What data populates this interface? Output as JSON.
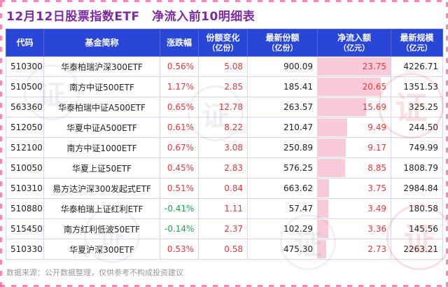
{
  "title": "12月12日股票指数ETF　净流入前10明细表",
  "footer": "数据来源：公开数据整理，仅供参考不构成投资建议",
  "watermark": {
    "glyph": "证"
  },
  "colors": {
    "title": "#7c2ba1",
    "header_bg": "#2a46d6",
    "header_text": "#ffffff",
    "up": "#e23a3c",
    "down": "#17a356",
    "bar": "#f9cbd8",
    "border": "#d9d3f0",
    "footer": "#999999"
  },
  "chart_data": {
    "type": "table",
    "title": "12月12日股票指数ETF　净流入前10明细表",
    "columns": [
      {
        "label": "代码",
        "sub": ""
      },
      {
        "label": "基金简称",
        "sub": ""
      },
      {
        "label": "涨跌幅",
        "sub": ""
      },
      {
        "label": "份额变化",
        "sub": "（亿份）"
      },
      {
        "label": "最新份额",
        "sub": "（亿份）"
      },
      {
        "label": "净流入额",
        "sub": "（亿元）"
      },
      {
        "label": "最新规模",
        "sub": "（亿元）"
      }
    ],
    "max_inflow": 23.75,
    "rows": [
      {
        "code": "510300",
        "name": "华泰柏瑞沪深300ETF",
        "change": "0.56%",
        "share_change": "5.08",
        "latest_share": "900.09",
        "inflow": "23.75",
        "scale": "4226.71"
      },
      {
        "code": "510500",
        "name": "南方中证500ETF",
        "change": "1.17%",
        "share_change": "2.85",
        "latest_share": "185.41",
        "inflow": "20.65",
        "scale": "1351.53"
      },
      {
        "code": "563360",
        "name": "华泰柏瑞中证A500ETF",
        "change": "0.65%",
        "share_change": "12.78",
        "latest_share": "263.57",
        "inflow": "15.69",
        "scale": "325.25"
      },
      {
        "code": "512050",
        "name": "华夏中证A500ETF",
        "change": "0.61%",
        "share_change": "8.22",
        "latest_share": "210.47",
        "inflow": "9.49",
        "scale": "244.50"
      },
      {
        "code": "512100",
        "name": "南方中证1000ETF",
        "change": "0.67%",
        "share_change": "3.08",
        "latest_share": "250.89",
        "inflow": "9.17",
        "scale": "749.99"
      },
      {
        "code": "510050",
        "name": "华夏上证50ETF",
        "change": "0.45%",
        "share_change": "2.83",
        "latest_share": "576.25",
        "inflow": "8.85",
        "scale": "1808.79"
      },
      {
        "code": "510310",
        "name": "易方达沪深300发起式ETF",
        "change": "0.51%",
        "share_change": "0.84",
        "latest_share": "663.62",
        "inflow": "3.75",
        "scale": "2984.84"
      },
      {
        "code": "510880",
        "name": "华泰柏瑞上证红利ETF",
        "change": "-0.41%",
        "share_change": "1.11",
        "latest_share": "57.47",
        "inflow": "3.49",
        "scale": "180.58"
      },
      {
        "code": "515450",
        "name": "南方红利低波50ETF",
        "change": "-0.14%",
        "share_change": "2.37",
        "latest_share": "102.29",
        "inflow": "3.36",
        "scale": "145.56"
      },
      {
        "code": "510330",
        "name": "华夏沪深300ETF",
        "change": "0.53%",
        "share_change": "0.58",
        "latest_share": "475.30",
        "inflow": "2.73",
        "scale": "2263.21"
      }
    ]
  }
}
